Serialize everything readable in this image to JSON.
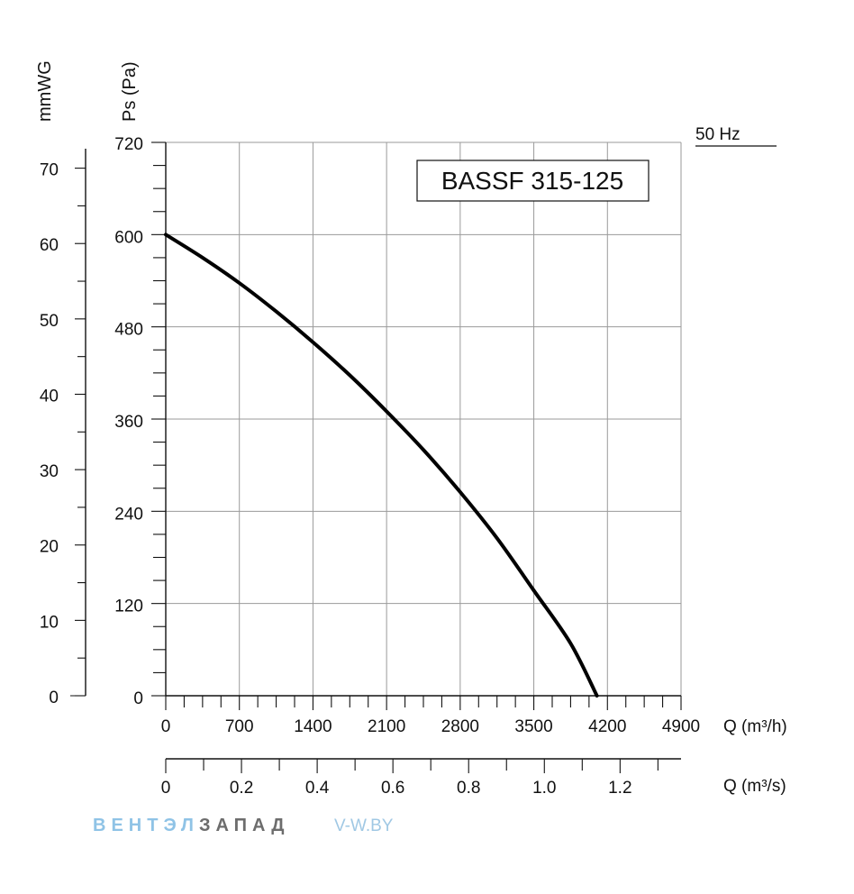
{
  "chart_data": {
    "type": "line",
    "title": "BASSF 315-125",
    "frequency_label": "50 Hz",
    "y_left_outer_label": "mmWG",
    "y_left_inner_label": "Ps (Pa)",
    "x_label": "Q (m³/h)",
    "x2_label": "Q (m³/s)",
    "xlim": [
      0,
      4900
    ],
    "ylim": [
      0,
      720
    ],
    "y_ticks_pa": [
      "720",
      "600",
      "480",
      "360",
      "240",
      "120",
      "0"
    ],
    "y_ticks_pa_values": [
      720,
      600,
      480,
      360,
      240,
      120,
      0
    ],
    "y_ticks_mmwg": [
      "70",
      "60",
      "50",
      "40",
      "30",
      "20",
      "10",
      "0"
    ],
    "y_ticks_mmwg_values": [
      70,
      60,
      50,
      40,
      30,
      20,
      10,
      0
    ],
    "x_ticks_m3h": [
      "0",
      "700",
      "1400",
      "2100",
      "2800",
      "3500",
      "4200",
      "4900"
    ],
    "x_ticks_m3h_values": [
      0,
      700,
      1400,
      2100,
      2800,
      3500,
      4200,
      4900
    ],
    "x_ticks_m3s": [
      "0",
      "0.2",
      "0.4",
      "0.6",
      "0.8",
      "1.0",
      "1.2"
    ],
    "x_ticks_m3s_values": [
      0,
      0.2,
      0.4,
      0.6,
      0.8,
      1.0,
      1.2
    ],
    "x2_max": 1.361,
    "grid": true,
    "series": [
      {
        "x": [
          0,
          350,
          700,
          1050,
          1400,
          1750,
          2100,
          2450,
          2800,
          3150,
          3500,
          3850,
          4100
        ],
        "y": [
          600,
          570,
          537,
          500,
          460,
          417,
          370,
          320,
          265,
          205,
          137,
          68,
          0
        ]
      }
    ]
  },
  "watermark": {
    "brand_part1": "ВЕНТЭЛ",
    "brand_part2": "ЗАПАД",
    "site": "V-W.BY"
  },
  "colors": {
    "line": "#000000",
    "grid": "#9a9a9a",
    "brand_part1": "#8fc3e6",
    "brand_part2": "#6d6d6d",
    "site": "#a0c8e4"
  }
}
